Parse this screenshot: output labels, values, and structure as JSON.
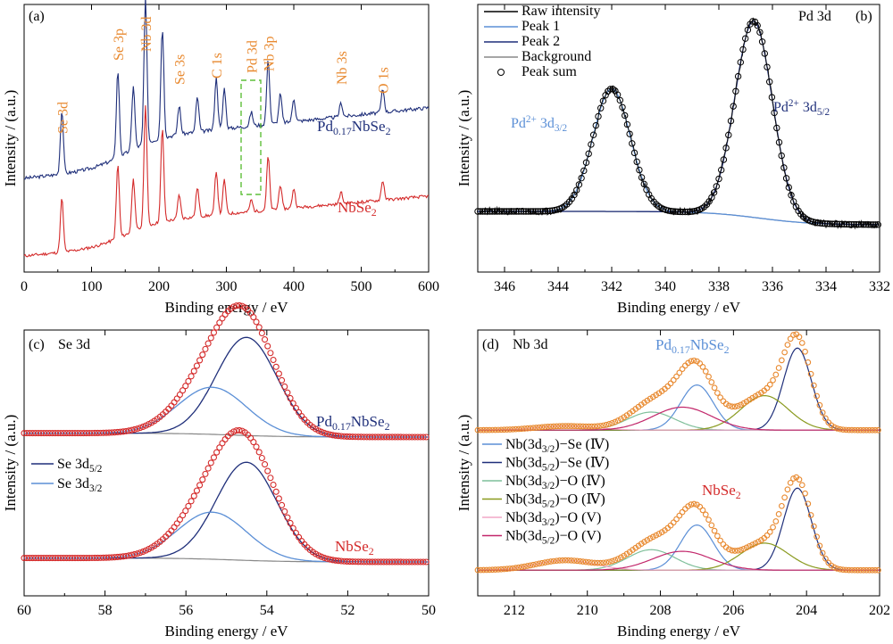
{
  "colors": {
    "navy": "#1f2f7a",
    "red": "#d42a2a",
    "orange": "#e8892f",
    "lightblue": "#5b8fd6",
    "green": "#7fbf9a",
    "olive": "#8a9a1f",
    "pink": "#f2a7c7",
    "magenta": "#c2276b",
    "gray": "#888888",
    "green_dash": "#5fbf3a"
  },
  "chart_data": [
    {
      "type": "line",
      "panel": "(a)",
      "xlabel": "Binding energy / eV",
      "ylabel": "Intensity / (a.u.)",
      "xlim": [
        0,
        600
      ],
      "xticks": [
        0,
        100,
        200,
        300,
        400,
        500,
        600
      ],
      "series": [
        {
          "name": "Pd0.17NbSe2",
          "label_main": "Pd",
          "label_sub": "0.17",
          "label_rest": "NbSe",
          "label_sub2": "2",
          "color": "navy"
        },
        {
          "name": "NbSe2",
          "label_main": "NbSe",
          "label_sub": "2",
          "label_rest": "",
          "label_sub2": "",
          "color": "red"
        }
      ],
      "peaks": [
        {
          "x": 56,
          "h": 0.55
        },
        {
          "x": 139,
          "h": 0.75
        },
        {
          "x": 162,
          "h": 0.55
        },
        {
          "x": 180,
          "h": 1.25
        },
        {
          "x": 205,
          "h": 0.95
        },
        {
          "x": 230,
          "h": 0.25
        },
        {
          "x": 257,
          "h": 0.3
        },
        {
          "x": 285,
          "h": 0.45
        },
        {
          "x": 297,
          "h": 0.35
        },
        {
          "x": 337,
          "h": 0.12
        },
        {
          "x": 362,
          "h": 0.55
        },
        {
          "x": 380,
          "h": 0.25
        },
        {
          "x": 400,
          "h": 0.2
        },
        {
          "x": 470,
          "h": 0.12
        },
        {
          "x": 532,
          "h": 0.2
        }
      ],
      "annotations": [
        {
          "text": "Se 3d",
          "x": 56
        },
        {
          "text": "Se 3p",
          "x": 139
        },
        {
          "text": "Nb 3d",
          "x": 180
        },
        {
          "text": "Se 3s",
          "x": 230
        },
        {
          "text": "C 1s",
          "x": 285
        },
        {
          "text": "Pd 3d",
          "x": 337
        },
        {
          "text": "Nb 3p",
          "x": 362
        },
        {
          "text": "Nb 3s",
          "x": 470
        },
        {
          "text": "O 1s",
          "x": 532
        }
      ]
    },
    {
      "type": "line",
      "panel": "(b)",
      "title": "Pd 3d",
      "xlabel": "Binding energy / eV",
      "ylabel": "Intensity / (a.u.)",
      "xlim": [
        347,
        332
      ],
      "xticks": [
        346,
        344,
        342,
        340,
        338,
        336,
        334,
        332
      ],
      "legend": [
        "Raw intensity",
        "Peak 1",
        "Peak 2",
        "Background",
        "Peak sum"
      ],
      "peaks": [
        {
          "name": "Peak 1",
          "center": 342.0,
          "height": 0.55,
          "width": 0.7,
          "label_main": "Pd",
          "label_sup": "2+",
          "label_rest": " 3d",
          "label_sub": "3/2"
        },
        {
          "name": "Peak 2",
          "center": 336.7,
          "height": 0.88,
          "width": 0.7,
          "label_main": "Pd",
          "label_sup": "2+",
          "label_rest": " 3d",
          "label_sub": "5/2"
        }
      ]
    },
    {
      "type": "line",
      "panel": "(c)",
      "title": "Se 3d",
      "xlabel": "Binding energy / eV",
      "ylabel": "Intensity / (a.u.)",
      "xlim": [
        60,
        50
      ],
      "xticks": [
        60,
        58,
        56,
        54,
        52,
        50
      ],
      "legend": [
        {
          "main": "Se 3d",
          "sub": "5/2",
          "color": "navy"
        },
        {
          "main": "Se 3d",
          "sub": "3/2",
          "color": "lightblue"
        }
      ],
      "components": [
        {
          "name": "Se 3d5/2",
          "center": 54.5,
          "height": 1.0,
          "width": 0.75
        },
        {
          "name": "Se 3d3/2",
          "center": 55.35,
          "height": 0.48,
          "width": 0.85
        }
      ],
      "samples": [
        {
          "label_main": "Pd",
          "label_sub": "0.17",
          "label_rest": "NbSe",
          "label_sub2": "2",
          "color": "navy"
        },
        {
          "label_main": "NbSe",
          "label_sub": "2",
          "label_rest": "",
          "label_sub2": "",
          "color": "red"
        }
      ]
    },
    {
      "type": "line",
      "panel": "(d)",
      "title": "Nb 3d",
      "xlabel": "Binding energy / eV",
      "ylabel": "Intensity / (a.u.)",
      "xlim": [
        213,
        202
      ],
      "xticks": [
        212,
        210,
        208,
        206,
        204,
        202
      ],
      "legend": [
        {
          "main": "Nb(3d",
          "sub": "3/2",
          "rest": ")−Se (Ⅳ)",
          "color": "lightblue"
        },
        {
          "main": "Nb(3d",
          "sub": "5/2",
          "rest": ")−Se (Ⅳ)",
          "color": "navy"
        },
        {
          "main": "Nb(3d",
          "sub": "3/2",
          "rest": ")−O (Ⅳ)",
          "color": "green"
        },
        {
          "main": "Nb(3d",
          "sub": "5/2",
          "rest": ")−O (Ⅳ)",
          "color": "olive"
        },
        {
          "main": "Nb(3d",
          "sub": "3/2",
          "rest": ")−O  (V)",
          "color": "pink"
        },
        {
          "main": "Nb(3d",
          "sub": "5/2",
          "rest": ")−O (V)",
          "color": "magenta"
        }
      ],
      "components": [
        {
          "name": "Nb(3d3/2)-Se (IV)",
          "center": 207.0,
          "width": 0.45,
          "color": "lightblue"
        },
        {
          "name": "Nb(3d5/2)-Se (IV)",
          "center": 204.25,
          "width": 0.38,
          "color": "navy"
        },
        {
          "name": "Nb(3d3/2)-O (IV)",
          "center": 208.25,
          "width": 0.65,
          "color": "green"
        },
        {
          "name": "Nb(3d5/2)-O (IV)",
          "center": 205.15,
          "width": 0.65,
          "color": "olive"
        },
        {
          "name": "Nb(3d3/2)-O (V)",
          "center": 210.6,
          "width": 0.8,
          "color": "pink"
        },
        {
          "name": "Nb(3d5/2)-O (V)",
          "center": 207.4,
          "width": 0.8,
          "color": "magenta"
        }
      ],
      "samples": [
        {
          "label_main": "Pd",
          "label_sub": "0.17",
          "label_rest": "NbSe",
          "label_sub2": "2",
          "color": "lightblue",
          "heights": [
            0.55,
            1.0,
            0.22,
            0.42,
            0.05,
            0.28
          ]
        },
        {
          "label_main": "NbSe",
          "label_sub": "2",
          "label_rest": "",
          "label_sub2": "",
          "color": "red",
          "heights": [
            0.55,
            1.0,
            0.25,
            0.33,
            0.12,
            0.23
          ]
        }
      ]
    }
  ]
}
